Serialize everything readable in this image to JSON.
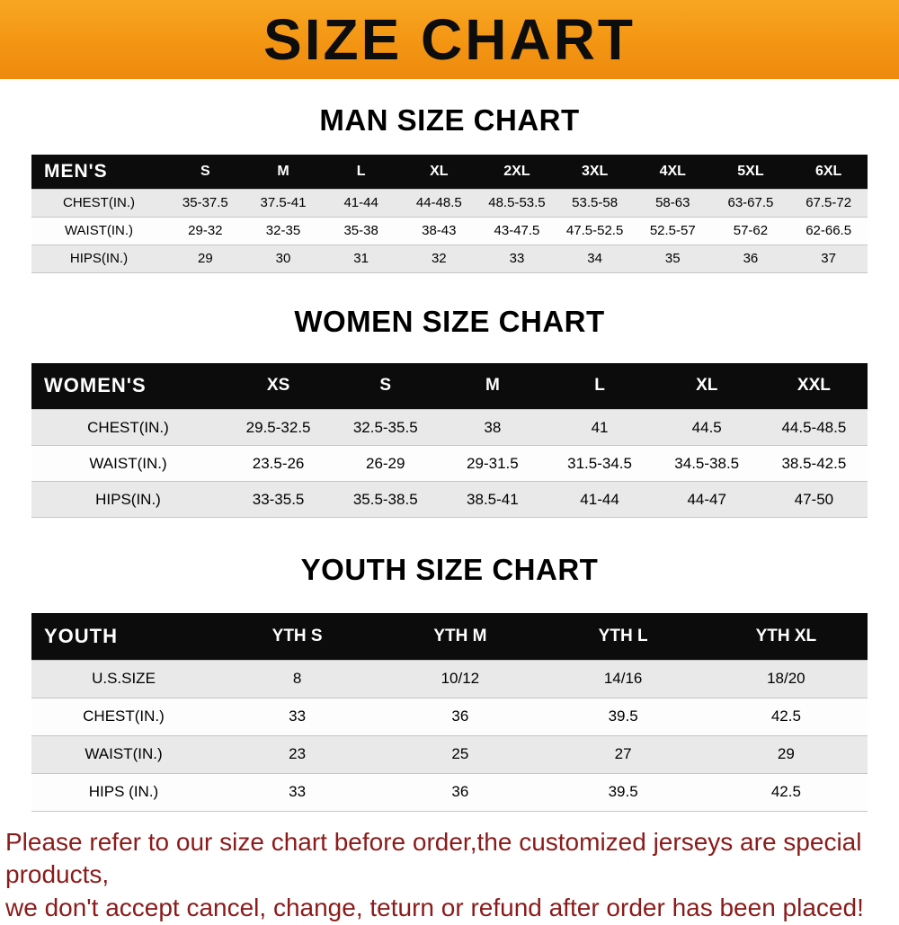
{
  "banner": {
    "title": "SIZE CHART"
  },
  "colors": {
    "banner_orange": "#f39513",
    "table_header_black": "#0c0c0c",
    "row_stripe_gray": "#e9e9e9",
    "disclaimer_red": "#8b1b1b"
  },
  "men": {
    "section_title": "MAN SIZE CHART",
    "header": "MEN'S",
    "columns": [
      "S",
      "M",
      "L",
      "XL",
      "2XL",
      "3XL",
      "4XL",
      "5XL",
      "6XL"
    ],
    "rows": [
      {
        "label": "CHEST(IN.)",
        "values": [
          "35-37.5",
          "37.5-41",
          "41-44",
          "44-48.5",
          "48.5-53.5",
          "53.5-58",
          "58-63",
          "63-67.5",
          "67.5-72"
        ]
      },
      {
        "label": "WAIST(IN.)",
        "values": [
          "29-32",
          "32-35",
          "35-38",
          "38-43",
          "43-47.5",
          "47.5-52.5",
          "52.5-57",
          "57-62",
          "62-66.5"
        ]
      },
      {
        "label": "HIPS(IN.)",
        "values": [
          "29",
          "30",
          "31",
          "32",
          "33",
          "34",
          "35",
          "36",
          "37"
        ]
      }
    ]
  },
  "women": {
    "section_title": "WOMEN SIZE CHART",
    "header": "WOMEN'S",
    "columns": [
      "XS",
      "S",
      "M",
      "L",
      "XL",
      "XXL"
    ],
    "rows": [
      {
        "label": "CHEST(IN.)",
        "values": [
          "29.5-32.5",
          "32.5-35.5",
          "38",
          "41",
          "44.5",
          "44.5-48.5"
        ]
      },
      {
        "label": "WAIST(IN.)",
        "values": [
          "23.5-26",
          "26-29",
          "29-31.5",
          "31.5-34.5",
          "34.5-38.5",
          "38.5-42.5"
        ]
      },
      {
        "label": "HIPS(IN.)",
        "values": [
          "33-35.5",
          "35.5-38.5",
          "38.5-41",
          "41-44",
          "44-47",
          "47-50"
        ]
      }
    ]
  },
  "youth": {
    "section_title": "YOUTH SIZE CHART",
    "header": "YOUTH",
    "columns": [
      "YTH S",
      "YTH M",
      "YTH L",
      "YTH XL"
    ],
    "rows": [
      {
        "label": "U.S.SIZE",
        "values": [
          "8",
          "10/12",
          "14/16",
          "18/20"
        ]
      },
      {
        "label": "CHEST(IN.)",
        "values": [
          "33",
          "36",
          "39.5",
          "42.5"
        ]
      },
      {
        "label": "WAIST(IN.)",
        "values": [
          "23",
          "25",
          "27",
          "29"
        ]
      },
      {
        "label": "HIPS (IN.)",
        "values": [
          "33",
          "36",
          "39.5",
          "42.5"
        ]
      }
    ]
  },
  "footer": {
    "line1": "Please refer to our size chart before order,the customized jerseys are special products,",
    "line2": "we don't accept cancel, change, teturn or refund after order has been placed!"
  }
}
